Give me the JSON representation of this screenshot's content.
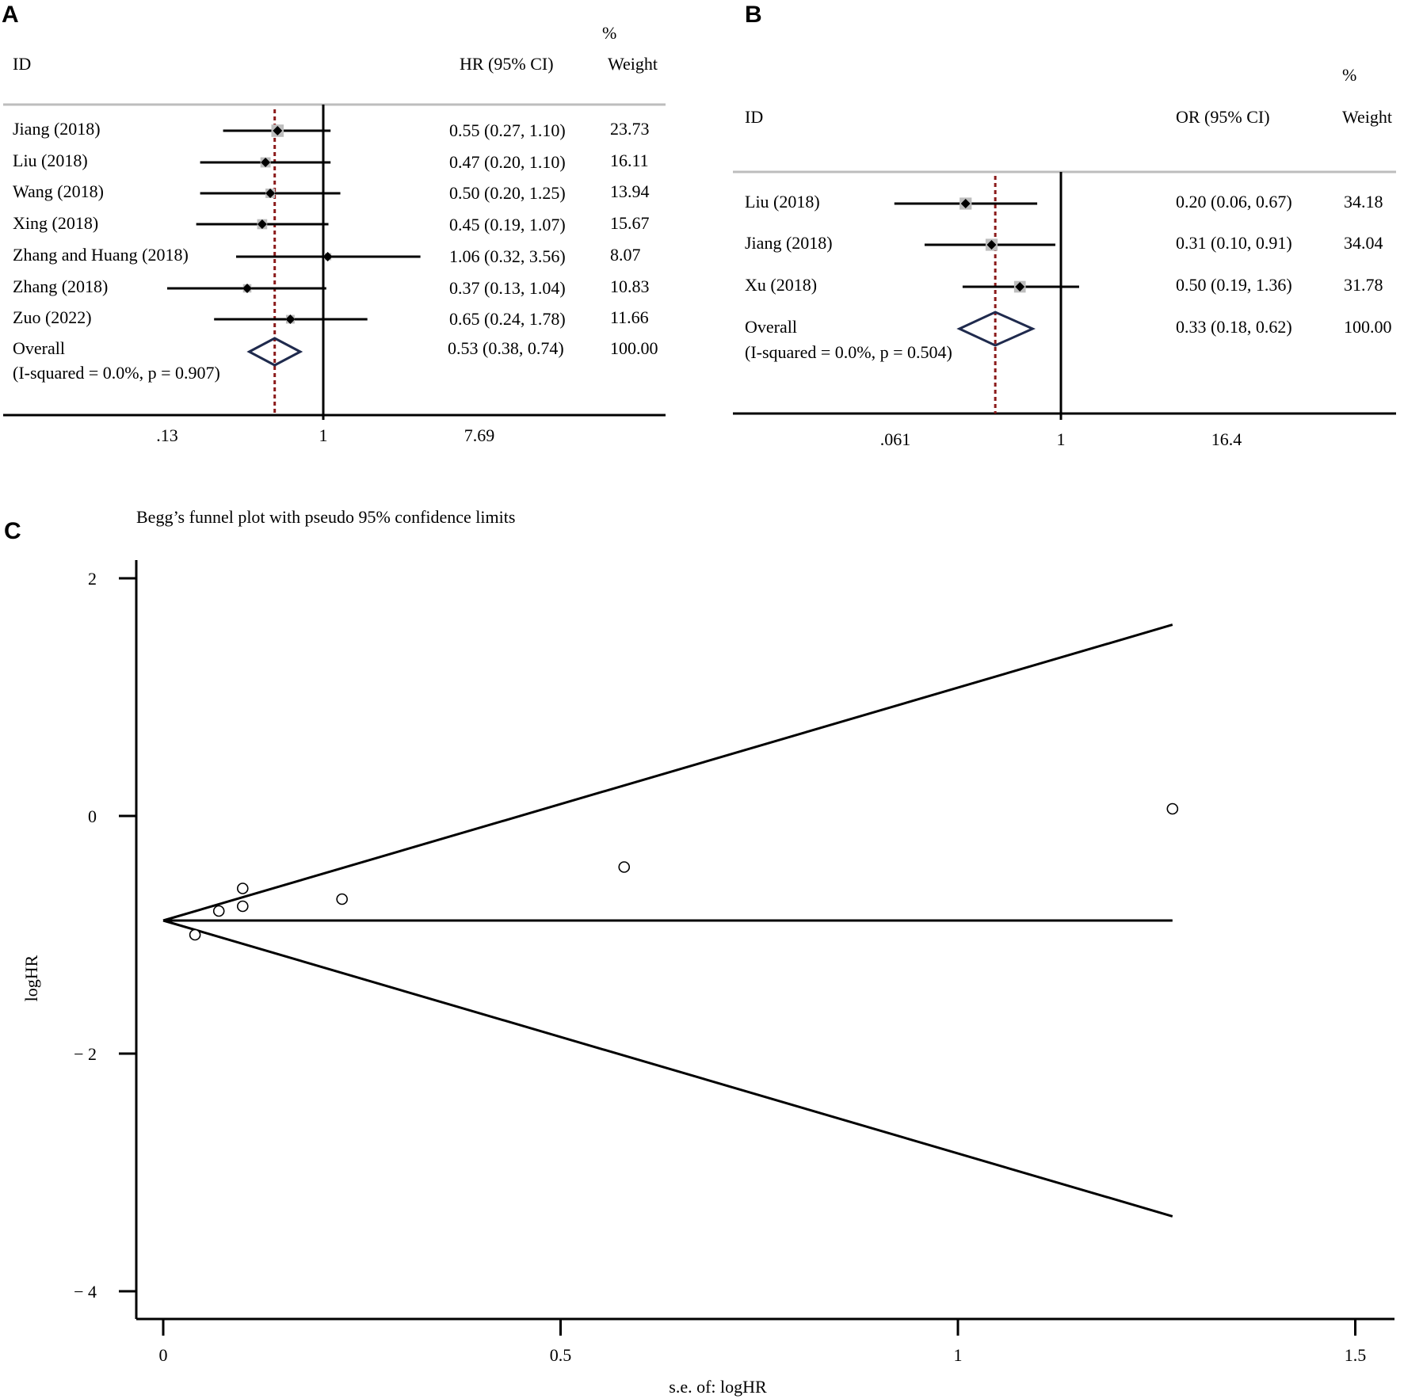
{
  "panels": {
    "a": {
      "letter": "A",
      "header": {
        "id": "ID",
        "effect": "HR (95% CI)",
        "pct": "%",
        "weight": "Weight"
      },
      "studies": [
        {
          "label": "Jiang (2018)",
          "est": 0.55,
          "lo": 0.27,
          "hi": 1.1,
          "ci_text": "0.55 (0.27, 1.10)",
          "weight_text": "23.73",
          "weight": 23.73
        },
        {
          "label": "Liu (2018)",
          "est": 0.47,
          "lo": 0.2,
          "hi": 1.1,
          "ci_text": "0.47 (0.20, 1.10)",
          "weight_text": "16.11",
          "weight": 16.11
        },
        {
          "label": "Wang (2018)",
          "est": 0.5,
          "lo": 0.2,
          "hi": 1.25,
          "ci_text": "0.50 (0.20, 1.25)",
          "weight_text": "13.94",
          "weight": 13.94
        },
        {
          "label": "Xing (2018)",
          "est": 0.45,
          "lo": 0.19,
          "hi": 1.07,
          "ci_text": "0.45 (0.19, 1.07)",
          "weight_text": "15.67",
          "weight": 15.67
        },
        {
          "label": "Zhang and Huang (2018)",
          "est": 1.06,
          "lo": 0.32,
          "hi": 3.56,
          "ci_text": "1.06 (0.32, 3.56)",
          "weight_text": "8.07",
          "weight": 8.07
        },
        {
          "label": "Zhang (2018)",
          "est": 0.37,
          "lo": 0.13,
          "hi": 1.04,
          "ci_text": "0.37 (0.13, 1.04)",
          "weight_text": "10.83",
          "weight": 10.83
        },
        {
          "label": "Zuo (2022)",
          "est": 0.65,
          "lo": 0.24,
          "hi": 1.78,
          "ci_text": "0.65 (0.24, 1.78)",
          "weight_text": "11.66",
          "weight": 11.66
        }
      ],
      "overall": {
        "label": "Overall",
        "sub": "(I-squared = 0.0%, p = 0.907)",
        "est": 0.53,
        "lo": 0.38,
        "hi": 0.74,
        "ci_text": "0.53 (0.38, 0.74)",
        "weight_text": "100.00"
      },
      "axis": {
        "scale": "log",
        "ticks": [
          {
            "value": 0.13,
            "label": ".13"
          },
          {
            "value": 1,
            "label": "1"
          },
          {
            "value": 7.69,
            "label": "7.69"
          }
        ]
      }
    },
    "b": {
      "letter": "B",
      "header": {
        "id": "ID",
        "effect": "OR (95% CI)",
        "pct": "%",
        "weight": "Weight"
      },
      "studies": [
        {
          "label": "Liu (2018)",
          "est": 0.2,
          "lo": 0.06,
          "hi": 0.67,
          "ci_text": "0.20 (0.06, 0.67)",
          "weight_text": "34.18",
          "weight": 34.18
        },
        {
          "label": "Jiang (2018)",
          "est": 0.31,
          "lo": 0.1,
          "hi": 0.91,
          "ci_text": "0.31 (0.10, 0.91)",
          "weight_text": "34.04",
          "weight": 34.04
        },
        {
          "label": "Xu (2018)",
          "est": 0.5,
          "lo": 0.19,
          "hi": 1.36,
          "ci_text": "0.50 (0.19, 1.36)",
          "weight_text": "31.78",
          "weight": 31.78
        }
      ],
      "overall": {
        "label": "Overall",
        "sub": "(I-squared = 0.0%, p = 0.504)",
        "est": 0.33,
        "lo": 0.18,
        "hi": 0.62,
        "ci_text": "0.33 (0.18, 0.62)",
        "weight_text": "100.00"
      },
      "axis": {
        "scale": "log",
        "ticks": [
          {
            "value": 0.061,
            "label": ".061"
          },
          {
            "value": 1,
            "label": "1"
          },
          {
            "value": 16.4,
            "label": "16.4"
          }
        ]
      }
    },
    "c": {
      "letter": "C",
      "title": "Begg’s funnel plot with pseudo 95% confidence limits",
      "xlabel": "s.e. of: logHR",
      "ylabel": "logHR",
      "xticks": [
        {
          "value": 0,
          "label": "0"
        },
        {
          "value": 0.5,
          "label": "0.5"
        },
        {
          "value": 1,
          "label": "1"
        },
        {
          "value": 1.5,
          "label": "1.5"
        }
      ],
      "yticks": [
        {
          "value": 2,
          "label": "2"
        },
        {
          "value": 0,
          "label": "0"
        },
        {
          "value": -2,
          "label": "− 2"
        },
        {
          "value": -4,
          "label": "− 4"
        }
      ],
      "xlim": [
        -0.03,
        1.55
      ],
      "ylim": [
        -4.2,
        2.3
      ],
      "pooled": -0.88,
      "max_se": 1.27,
      "points": [
        {
          "se": 0.04,
          "y": -1.0
        },
        {
          "se": 0.07,
          "y": -0.8
        },
        {
          "se": 0.1,
          "y": -0.61
        },
        {
          "se": 0.1,
          "y": -0.76
        },
        {
          "se": 0.225,
          "y": -0.7
        },
        {
          "se": 0.58,
          "y": -0.43
        },
        {
          "se": 1.27,
          "y": 0.06
        }
      ]
    }
  },
  "chart_data": [
    {
      "type": "forest",
      "title": "",
      "effect_measure": "HR (95% CI)",
      "categories": [
        "Jiang (2018)",
        "Liu (2018)",
        "Wang (2018)",
        "Xing (2018)",
        "Zhang and Huang (2018)",
        "Zhang (2018)",
        "Zuo (2022)",
        "Overall"
      ],
      "estimates": [
        0.55,
        0.47,
        0.5,
        0.45,
        1.06,
        0.37,
        0.65,
        0.53
      ],
      "ci_lower": [
        0.27,
        0.2,
        0.2,
        0.19,
        0.32,
        0.13,
        0.24,
        0.38
      ],
      "ci_upper": [
        1.1,
        1.1,
        1.25,
        1.07,
        3.56,
        1.04,
        1.78,
        0.74
      ],
      "weights": [
        23.73,
        16.11,
        13.94,
        15.67,
        8.07,
        10.83,
        11.66,
        100.0
      ],
      "heterogeneity": "(I-squared = 0.0%, p = 0.907)",
      "xscale": "log",
      "xticks": [
        0.13,
        1,
        7.69
      ]
    },
    {
      "type": "forest",
      "title": "",
      "effect_measure": "OR (95% CI)",
      "categories": [
        "Liu (2018)",
        "Jiang (2018)",
        "Xu (2018)",
        "Overall"
      ],
      "estimates": [
        0.2,
        0.31,
        0.5,
        0.33
      ],
      "ci_lower": [
        0.06,
        0.1,
        0.19,
        0.18
      ],
      "ci_upper": [
        0.67,
        0.91,
        1.36,
        0.62
      ],
      "weights": [
        34.18,
        34.04,
        31.78,
        100.0
      ],
      "heterogeneity": "(I-squared = 0.0%, p = 0.504)",
      "xscale": "log",
      "xticks": [
        0.061,
        1,
        16.4
      ]
    },
    {
      "type": "scatter",
      "title": "Begg’s funnel plot with pseudo 95% confidence limits",
      "xlabel": "s.e. of: logHR",
      "ylabel": "logHR",
      "x": [
        0.04,
        0.07,
        0.1,
        0.1,
        0.225,
        0.58,
        1.27
      ],
      "y": [
        -1.0,
        -0.8,
        -0.61,
        -0.76,
        -0.7,
        -0.43,
        0.06
      ],
      "pooled_logHR": -0.88,
      "xlim": [
        -0.03,
        1.55
      ],
      "ylim": [
        -4.2,
        2.3
      ],
      "xticks": [
        0,
        0.5,
        1,
        1.5
      ],
      "yticks": [
        -4,
        -2,
        0,
        2
      ]
    }
  ]
}
